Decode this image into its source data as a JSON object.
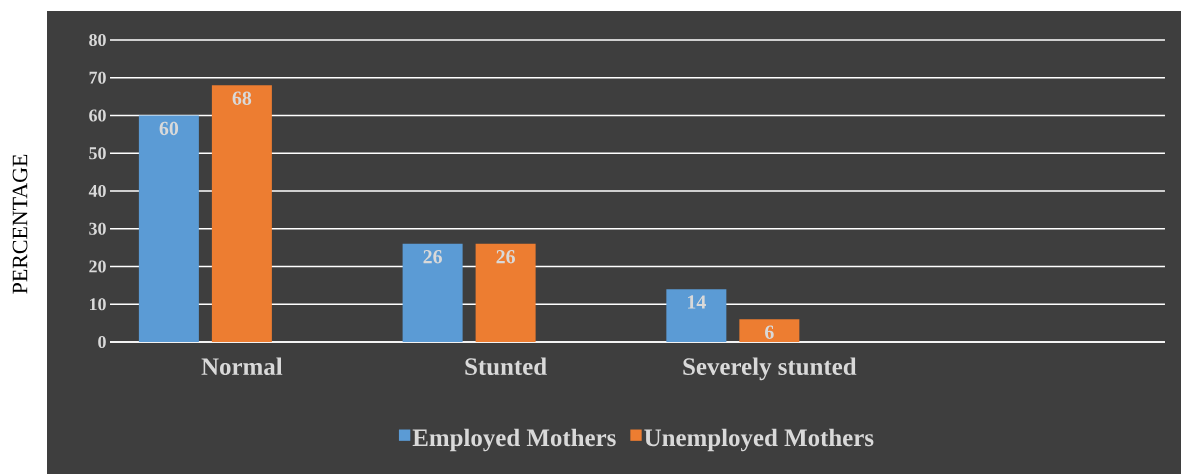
{
  "chart_data": {
    "type": "bar",
    "ylabel": "PERCENTAGE",
    "categories": [
      "Normal",
      "Stunted",
      "Severely stunted",
      null
    ],
    "series": [
      {
        "name": "Employed Mothers",
        "color": "#5b9bd5",
        "values": [
          60,
          26,
          14,
          null
        ]
      },
      {
        "name": "Unemployed Mothers",
        "color": "#ed7d31",
        "values": [
          68,
          26,
          6,
          null
        ]
      }
    ],
    "ylim": [
      0,
      80
    ],
    "yticks": [
      0,
      10,
      20,
      30,
      40,
      50,
      60,
      70,
      80
    ],
    "grid": "y",
    "legend": "bottom",
    "data_labels": true
  }
}
